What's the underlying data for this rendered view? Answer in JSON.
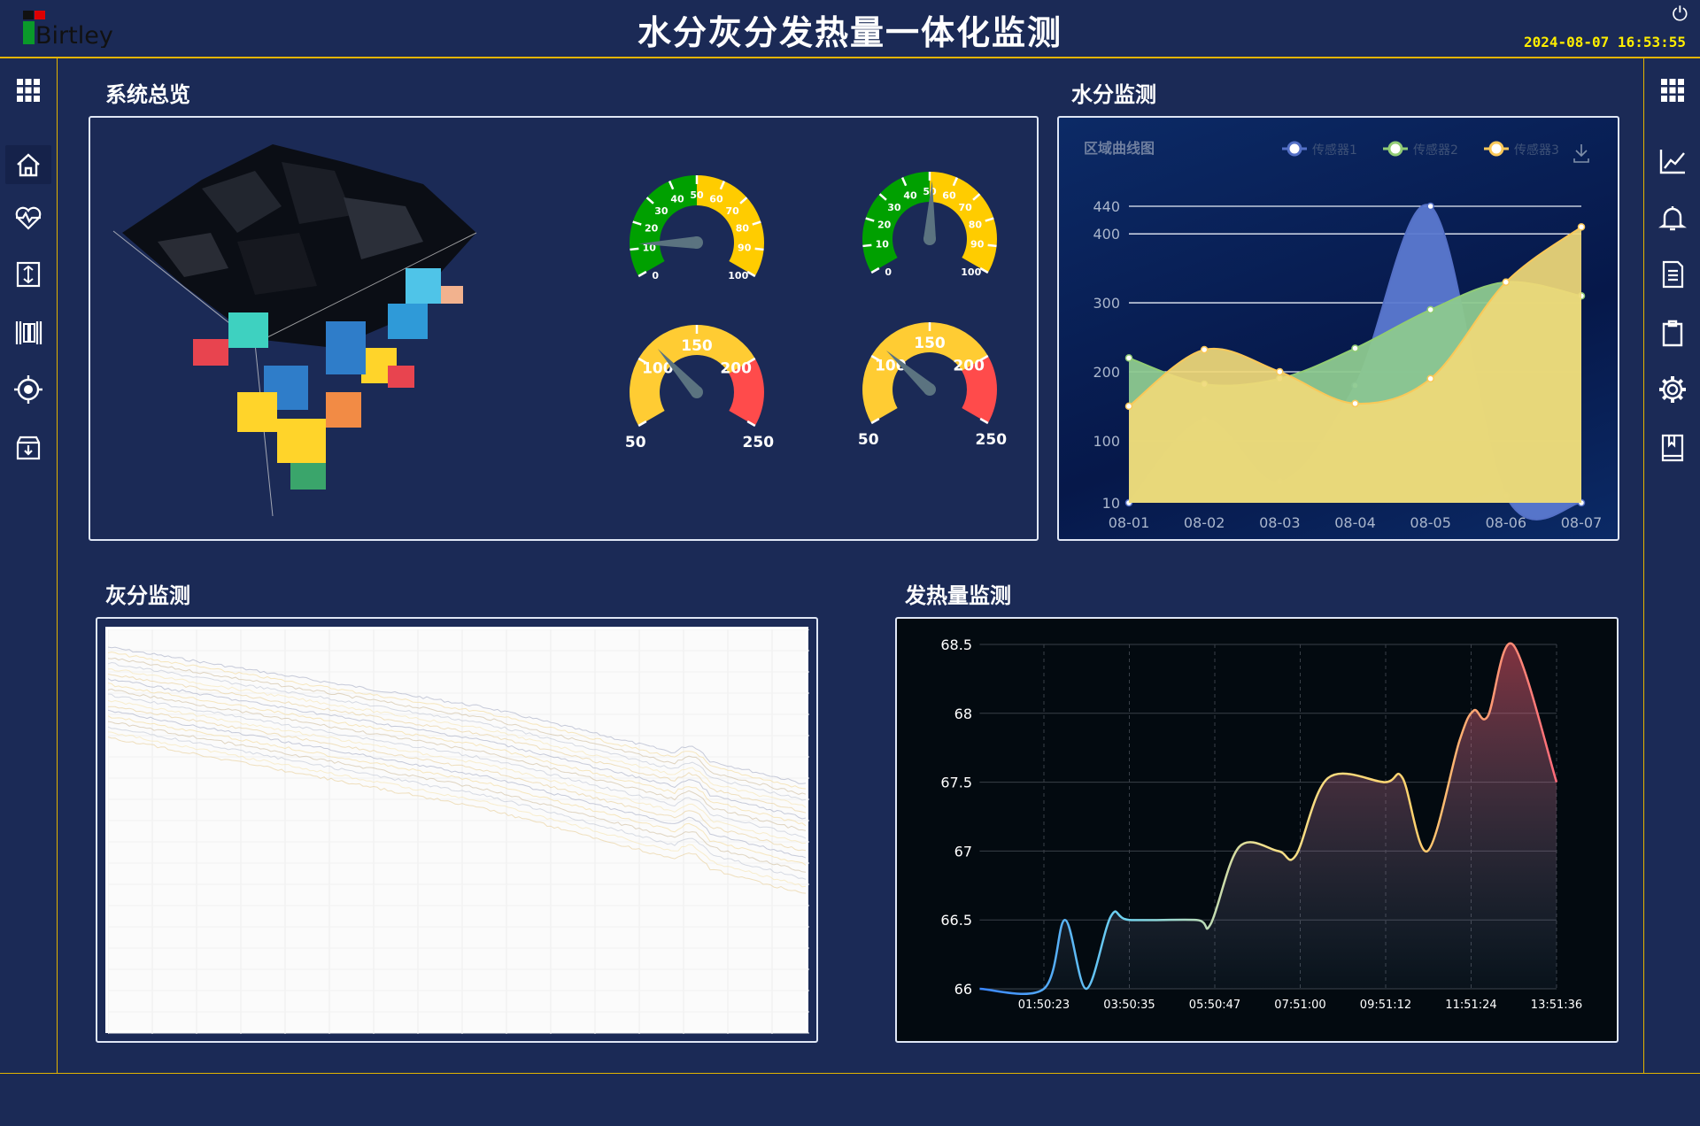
{
  "header": {
    "logo_text": "Birtley",
    "title": "水分灰分发热量一体化监测",
    "datetime": "2024-08-07 16:53:55",
    "power_icon": "power-icon"
  },
  "left_sidebar": {
    "items": [
      {
        "name": "grid",
        "icon": "grid-icon"
      },
      {
        "name": "home",
        "icon": "home-icon",
        "active": true
      },
      {
        "name": "health",
        "icon": "heart-pulse-icon"
      },
      {
        "name": "sort",
        "icon": "sort-arrows-icon"
      },
      {
        "name": "barcode",
        "icon": "barcode-icon"
      },
      {
        "name": "target",
        "icon": "target-icon"
      },
      {
        "name": "archive",
        "icon": "archive-download-icon"
      }
    ]
  },
  "right_sidebar": {
    "items": [
      {
        "name": "grid",
        "icon": "grid-icon"
      },
      {
        "name": "trend",
        "icon": "line-chart-icon"
      },
      {
        "name": "alarm",
        "icon": "bell-icon"
      },
      {
        "name": "report",
        "icon": "document-icon"
      },
      {
        "name": "clipboard",
        "icon": "clipboard-icon"
      },
      {
        "name": "settings",
        "icon": "gear-icon"
      },
      {
        "name": "manual",
        "icon": "book-icon"
      }
    ]
  },
  "sections": {
    "overview": "系统总览",
    "moisture": "水分监测",
    "ash": "灰分监测",
    "heat": "发热量监测"
  },
  "gauges": [
    {
      "min": 0,
      "max": 100,
      "value": 12,
      "ticks": [
        0,
        10,
        20,
        30,
        40,
        50,
        60,
        70,
        80,
        90,
        100
      ],
      "bands": [
        {
          "to": 50,
          "color": "#00a000"
        },
        {
          "to": 100,
          "color": "#ffcc00"
        }
      ]
    },
    {
      "min": 0,
      "max": 100,
      "value": 51,
      "ticks": [
        0,
        10,
        20,
        30,
        40,
        50,
        60,
        70,
        80,
        90,
        100
      ],
      "bands": [
        {
          "to": 50,
          "color": "#00a000"
        },
        {
          "to": 100,
          "color": "#ffcc00"
        }
      ]
    },
    {
      "min": 50,
      "max": 250,
      "value": 115,
      "ticks": [
        50,
        100,
        150,
        200,
        250
      ],
      "bands": [
        {
          "to": 200,
          "color": "#ffcc33"
        },
        {
          "to": 250,
          "color": "#ff4b4b"
        }
      ]
    },
    {
      "min": 50,
      "max": 250,
      "value": 110,
      "ticks": [
        50,
        100,
        150,
        200,
        250
      ],
      "bands": [
        {
          "to": 200,
          "color": "#ffcc33"
        },
        {
          "to": 250,
          "color": "#ff4b4b"
        }
      ]
    }
  ],
  "chart_data": [
    {
      "type": "area",
      "title": "区域曲线图",
      "categories": [
        "08-01",
        "08-02",
        "08-03",
        "08-04",
        "08-05",
        "08-06",
        "08-07"
      ],
      "yticks": [
        10,
        100,
        200,
        300,
        400,
        440
      ],
      "ylim": [
        10,
        440
      ],
      "grid": true,
      "legend_position": "top-right",
      "download_icon": "download-icon",
      "series": [
        {
          "name": "传感器1",
          "color": "#5470c6",
          "values": [
            10,
            130,
            40,
            180,
            440,
            20,
            10
          ]
        },
        {
          "name": "传感器2",
          "color": "#91cc75",
          "values": [
            220,
            182,
            190,
            234,
            290,
            330,
            310
          ]
        },
        {
          "name": "传感器3",
          "color": "#fac858",
          "values": [
            150,
            232,
            200,
            154,
            190,
            330,
            410
          ]
        }
      ]
    },
    {
      "type": "line",
      "xticks": [
        "01:50:23",
        "03:50:35",
        "05:50:47",
        "07:51:00",
        "09:51:12",
        "11:51:24",
        "13:51:36"
      ],
      "yticks": [
        66,
        66.5,
        67,
        67.5,
        68,
        68.5
      ],
      "ylim": [
        66,
        68.5
      ],
      "grid": true,
      "colors": [
        "#3a86ff",
        "#6fd3f0",
        "#f5e08a",
        "#ffd36e",
        "#ff6b7a"
      ],
      "points": [
        [
          "00:20:00",
          66.0
        ],
        [
          "01:50:23",
          66.0
        ],
        [
          "02:20:00",
          66.5
        ],
        [
          "02:50:00",
          66.0
        ],
        [
          "03:25:00",
          66.53
        ],
        [
          "03:50:35",
          66.5
        ],
        [
          "05:25:00",
          66.5
        ],
        [
          "05:45:00",
          66.47
        ],
        [
          "06:25:00",
          67.03
        ],
        [
          "07:20:00",
          67.0
        ],
        [
          "07:45:00",
          66.97
        ],
        [
          "08:30:00",
          67.53
        ],
        [
          "09:50:00",
          67.5
        ],
        [
          "10:15:00",
          67.53
        ],
        [
          "10:50:00",
          67.0
        ],
        [
          "11:35:00",
          67.8
        ],
        [
          "11:55:00",
          68.02
        ],
        [
          "12:15:00",
          67.98
        ],
        [
          "12:50:00",
          68.5
        ],
        [
          "13:51:36",
          67.5
        ]
      ]
    }
  ]
}
